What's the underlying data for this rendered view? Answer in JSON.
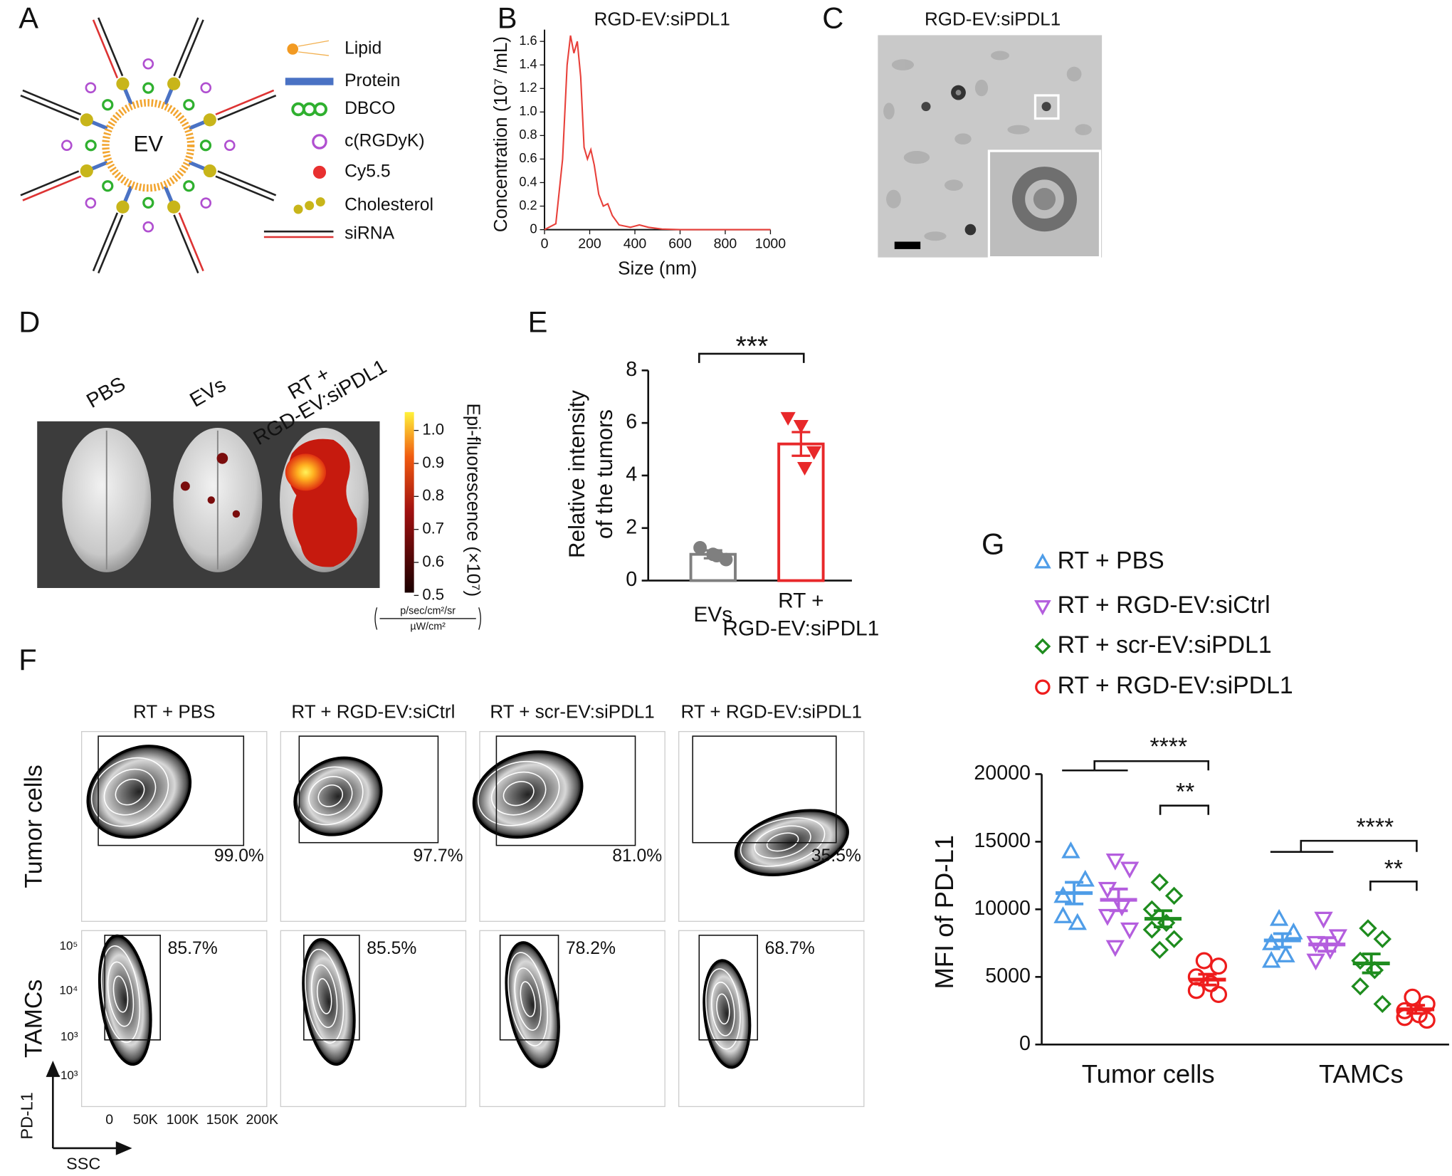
{
  "panel_labels": [
    "A",
    "B",
    "C",
    "D",
    "E",
    "F",
    "G"
  ],
  "panel_a": {
    "center_label": "EV",
    "legend": [
      "Lipid",
      "Protein",
      "DBCO",
      "c(RGDyK)",
      "Cy5.5",
      "Cholesterol",
      "siRNA"
    ]
  },
  "panel_c": {
    "title": "RGD-EV:siPDL1"
  },
  "panel_d": {
    "groups": [
      "PBS",
      "EVs",
      "RT +\nRGD-EV:siPDL1"
    ],
    "colorbar": {
      "label": "Epi-fluorescence (×10⁷)",
      "units_numerator": "p/sec/cm²/sr",
      "units_denominator": "µW/cm²",
      "range": [
        0.5,
        1.05
      ],
      "ticks": [
        {
          "value": 1,
          "label": "1.0"
        },
        0.9,
        0.8,
        0.7,
        0.6,
        0.5
      ]
    }
  },
  "panel_f": {
    "columns": [
      "RT + PBS",
      "RT + RGD-EV:siCtrl",
      "RT + scr-EV:siPDL1",
      "RT + RGD-EV:siPDL1"
    ],
    "rows": [
      "Tumor cells",
      "TAMCs"
    ],
    "gates": [
      [
        "99.0%",
        "97.7%",
        "81.0%",
        "35.5%"
      ],
      [
        "85.7%",
        "85.5%",
        "78.2%",
        "68.7%"
      ]
    ],
    "y_ticks": [
      "10⁵",
      "10⁴",
      "10³",
      "-10³"
    ],
    "x_ticks": [
      "0",
      "50K",
      "100K",
      "150K",
      "200K"
    ],
    "y_label": "PD-L1",
    "x_label": "SSC"
  },
  "chart_data": [
    {
      "type": "line",
      "title": "RGD-EV:siPDL1",
      "xlabel": "Size (nm)",
      "ylabel": "Concentration (10⁷ /mL)",
      "x": [
        0,
        50,
        80,
        100,
        115,
        130,
        145,
        160,
        175,
        190,
        205,
        220,
        240,
        260,
        280,
        300,
        330,
        380,
        420,
        460,
        520,
        600,
        1000
      ],
      "values": [
        0,
        0.05,
        0.6,
        1.4,
        1.65,
        1.5,
        1.6,
        1.3,
        0.7,
        0.6,
        0.68,
        0.55,
        0.3,
        0.2,
        0.22,
        0.12,
        0.04,
        0.02,
        0.04,
        0.02,
        0.005,
        0,
        0
      ],
      "color": "#e8403a",
      "xlim": [
        0,
        1000
      ],
      "ylim": [
        0,
        1.7
      ],
      "xticks": [
        0,
        200,
        400,
        600,
        800,
        1000
      ],
      "yticks": [
        0,
        0.2,
        0.4,
        0.6,
        0.8,
        {
          "value": 1,
          "label": "1.0"
        },
        1.2,
        1.4,
        1.6
      ]
    },
    {
      "type": "bar",
      "ylabel": "Relative intensity\nof the tumors",
      "categories": [
        "EVs",
        "RT +\nRGD-EV:siPDL1"
      ],
      "values": [
        1.0,
        5.2
      ],
      "errors": [
        0.15,
        0.45
      ],
      "points": [
        [
          1.25,
          1.0,
          0.8,
          0.95
        ],
        [
          6.2,
          5.9,
          4.9,
          4.3
        ]
      ],
      "colors": [
        "#7f7f7f",
        "#e8282a"
      ],
      "markers": [
        "circle",
        "triangle-down"
      ],
      "ylim": [
        0,
        8
      ],
      "yticks": [
        0,
        2,
        4,
        6,
        8
      ],
      "annotations": [
        "***"
      ]
    },
    {
      "type": "dotplot",
      "ylabel": "MFI of PD-L1",
      "categories": [
        "Tumor cells",
        "TAMCs"
      ],
      "ylim": [
        0,
        20000
      ],
      "yticks": [
        0,
        5000,
        10000,
        15000,
        20000
      ],
      "annotations": [
        "****",
        "**",
        "****",
        "**"
      ],
      "series": [
        {
          "name": "RT + PBS",
          "color": "#4f9de8",
          "marker": "triangle-up",
          "values": [
            11200,
            7700
          ],
          "errors": [
            800,
            500
          ],
          "points": [
            [
              14300,
              12200,
              11000,
              9000,
              9500
            ],
            [
              9300,
              8300,
              7500,
              6600,
              6200
            ]
          ]
        },
        {
          "name": "RT + RGD-EV:siCtrl",
          "color": "#b45ede",
          "marker": "triangle-down",
          "values": [
            10700,
            7400
          ],
          "errors": [
            800,
            500
          ],
          "points": [
            [
              13600,
              13000,
              11500,
              10200,
              9500,
              8500,
              7200
            ],
            [
              9300,
              8000,
              7500,
              7000,
              6200
            ]
          ]
        },
        {
          "name": "RT + scr-EV:siPDL1",
          "color": "#1e8c1e",
          "marker": "diamond",
          "values": [
            9300,
            6000
          ],
          "errors": [
            600,
            700
          ],
          "points": [
            [
              12000,
              11000,
              10000,
              9000,
              8500,
              7800,
              7000
            ],
            [
              8600,
              7800,
              6200,
              5500,
              4300,
              3000
            ]
          ]
        },
        {
          "name": "RT + RGD-EV:siPDL1",
          "color": "#ee1c1c",
          "marker": "circle",
          "values": [
            4800,
            2600
          ],
          "errors": [
            400,
            300
          ],
          "points": [
            [
              6200,
              5800,
              5000,
              4500,
              4000,
              3700
            ],
            [
              3500,
              3000,
              2500,
              2200,
              2000,
              1800
            ]
          ]
        }
      ]
    }
  ]
}
